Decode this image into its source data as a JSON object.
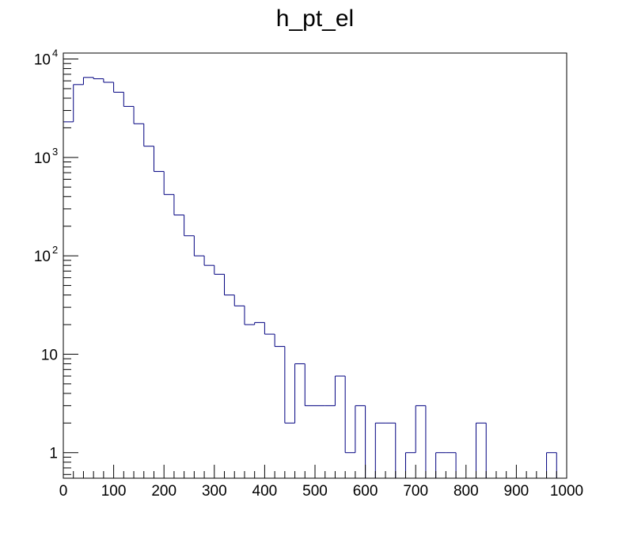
{
  "chart_data": {
    "type": "histogram",
    "title": "h_pt_el",
    "xlabel": "",
    "ylabel": "",
    "xlim": [
      0,
      1000
    ],
    "ylim": [
      0.55,
      11500
    ],
    "yscale": "log",
    "grid": false,
    "legend": "none",
    "line_color": "#000080",
    "bin_width": 20,
    "bin_edges_start": 0,
    "x_ticks": [
      "0",
      "100",
      "200",
      "300",
      "400",
      "500",
      "600",
      "700",
      "800",
      "900",
      "1000"
    ],
    "y_tick_labels": [
      {
        "value": 1,
        "base": "1",
        "exp": ""
      },
      {
        "value": 10,
        "base": "10",
        "exp": ""
      },
      {
        "value": 100,
        "base": "10",
        "exp": "2"
      },
      {
        "value": 1000,
        "base": "10",
        "exp": "3"
      },
      {
        "value": 10000,
        "base": "10",
        "exp": "4"
      }
    ],
    "values": [
      2300,
      5500,
      6500,
      6300,
      5800,
      4600,
      3300,
      2200,
      1300,
      720,
      420,
      260,
      160,
      100,
      80,
      65,
      40,
      31,
      20,
      21,
      16,
      12,
      2,
      8,
      3,
      3,
      3,
      6,
      1,
      3,
      0,
      2,
      2,
      0,
      1,
      3,
      0,
      1,
      1,
      0,
      0,
      2,
      0,
      0,
      0,
      0,
      0,
      0,
      1,
      0
    ]
  }
}
